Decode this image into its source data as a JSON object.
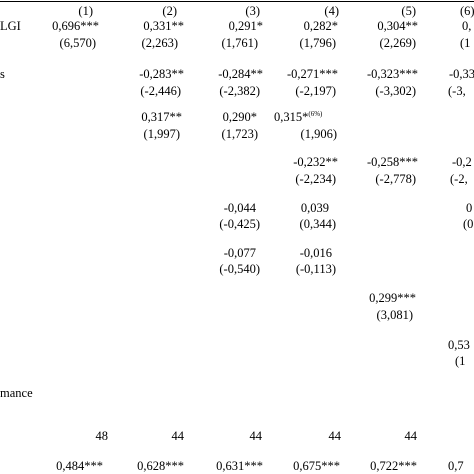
{
  "headers": [
    "(1)",
    "(2)",
    "(3)",
    "(4)",
    "(5)",
    "(6)"
  ],
  "stub_labels": {
    "row1": "LGI",
    "row2": "s",
    "performance": "mance"
  },
  "rows": {
    "r1": {
      "coef": [
        "0,696***",
        "0,331**",
        "0,291*",
        "0,282*",
        "0,304**",
        "0,"
      ],
      "t": [
        "(6,570)",
        "(2,263)",
        "(1,761)",
        "(1,796)",
        "(2,269)",
        "(1"
      ]
    },
    "r2": {
      "coef": [
        "-0,283**",
        "-0,284**",
        "-0,271***",
        "-0,323***",
        "-0,33"
      ],
      "t": [
        "(-2,446)",
        "(-2,382)",
        "(-2,197)",
        "(-3,302)",
        "(-3,"
      ]
    },
    "r3": {
      "coef": [
        "0,317**",
        "0,290*",
        "0,315*"
      ],
      "coef_sup": "(6%)",
      "t": [
        "(1,997)",
        "(1,723)",
        "(1,906)"
      ]
    },
    "r4": {
      "coef": [
        "-0,232**",
        "-0,258***",
        "-0,2"
      ],
      "t": [
        "(-2,234)",
        "(-2,778)",
        "(-2,"
      ]
    },
    "r5": {
      "coef": [
        "-0,044",
        "0,039",
        "0"
      ],
      "t": [
        "(-0,425)",
        "(0,344)",
        "(0"
      ]
    },
    "r6": {
      "coef": [
        "-0,077",
        "-0,016"
      ],
      "t": [
        "(-0,540)",
        "(-0,113)"
      ]
    },
    "r7": {
      "coef": [
        "0,299***"
      ],
      "t": [
        "(3,081)"
      ]
    },
    "r8": {
      "coef": [
        "0,53"
      ],
      "t": [
        "(1"
      ]
    }
  },
  "observations": [
    "48",
    "44",
    "44",
    "44",
    "44"
  ],
  "bottom_row": [
    "0,484***",
    "0,628***",
    "0,631***",
    "0,675***",
    "0,722***",
    "0,7"
  ]
}
